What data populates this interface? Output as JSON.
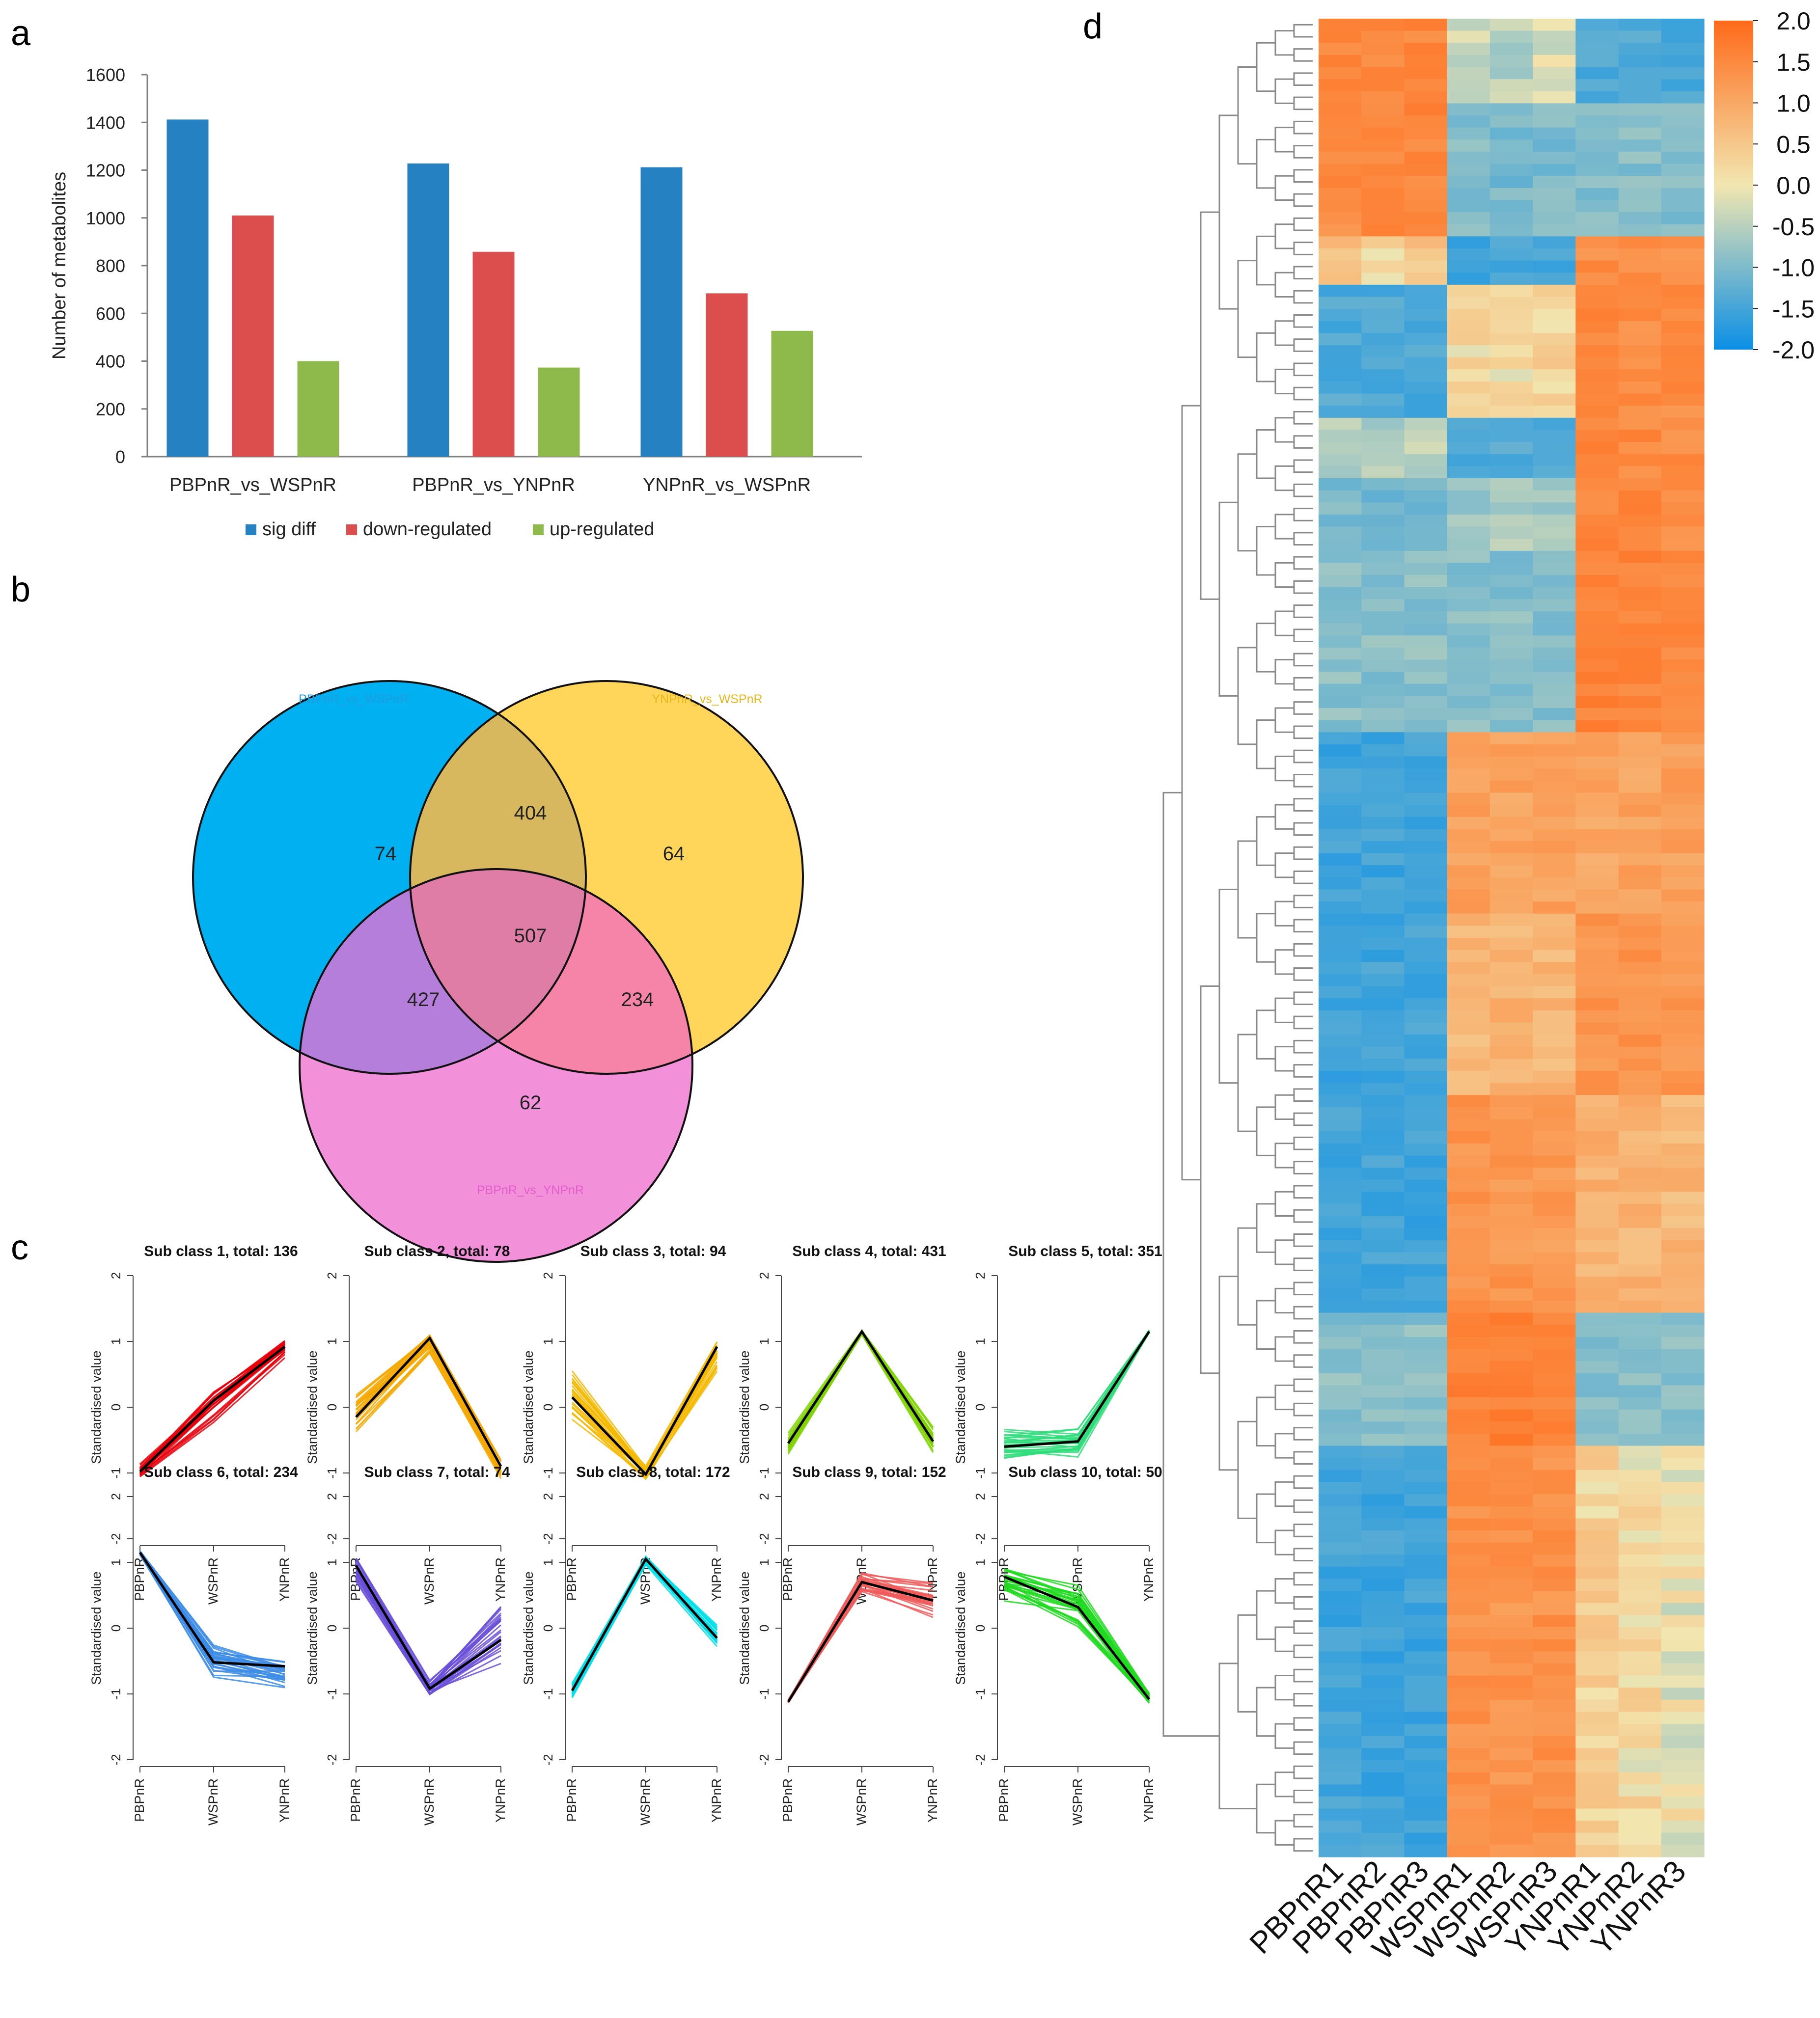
{
  "panel_labels": {
    "a": "a",
    "b": "b",
    "c": "c",
    "d": "d"
  },
  "colors": {
    "sig": "#2581C2",
    "down": "#DC4D4E",
    "up": "#8DBA4B",
    "venn1": "#00B0F0",
    "venn2": "#FFD55A",
    "venn3": "#F290DA",
    "venn1_label": "#1E9DE0",
    "venn2_label": "#E8B81C",
    "venn3_label": "#E25FCB",
    "heat_low": "#0A8FE6",
    "heat_mid": "#F2E6B0",
    "heat_high": "#FF6A1A"
  },
  "chart_data": [
    {
      "panel": "a",
      "type": "bar",
      "categories": [
        "PBPnR_vs_WSPnR",
        "PBPnR_vs_YNPnR",
        "YNPnR_vs_WSPnR"
      ],
      "series": [
        {
          "name": "sig diff",
          "values": [
            1412,
            1228,
            1212
          ]
        },
        {
          "name": "down-regulated",
          "values": [
            1010,
            858,
            684
          ]
        },
        {
          "name": "up-regulated",
          "values": [
            400,
            373,
            527
          ]
        }
      ],
      "ylabel": "Number of metabolites",
      "ylim": [
        0,
        1600
      ],
      "yticks": [
        "0",
        "200",
        "400",
        "600",
        "800",
        "1000",
        "1200",
        "1400",
        "1600"
      ],
      "legend": "bottom"
    },
    {
      "panel": "b",
      "type": "venn",
      "sets": [
        "PBPnR_vs_WSPnR",
        "YNPnR_vs_WSPnR",
        "PBPnR_vs_YNPnR"
      ],
      "regions": {
        "only1": "74",
        "only2": "64",
        "only3": "62",
        "s12": "404",
        "s13": "427",
        "s23": "234",
        "s123": "507"
      }
    },
    {
      "panel": "c",
      "type": "line",
      "xlabel_values": [
        "PBPnR",
        "WSPnR",
        "YNPnR"
      ],
      "ylabel": "Standardised value",
      "ylim": [
        -2,
        2
      ],
      "yticks": [
        "-2",
        "-1",
        "0",
        "1",
        "2"
      ],
      "subclasses": [
        {
          "title": "Sub class 1, total: 136",
          "color": "#E8000B",
          "mean": [
            -0.98,
            0.1,
            0.92
          ],
          "spread": [
            [
              -1.1,
              -0.85
            ],
            [
              -0.25,
              0.38
            ],
            [
              0.72,
              1.08
            ]
          ]
        },
        {
          "title": "Sub class 2, total: 78",
          "color": "#F5A800",
          "mean": [
            -0.15,
            1.05,
            -0.9
          ],
          "spread": [
            [
              -0.4,
              0.28
            ],
            [
              0.82,
              1.15
            ],
            [
              -1.1,
              -0.78
            ]
          ]
        },
        {
          "title": "Sub class 3, total: 94",
          "color": "#F5B800",
          "mean": [
            0.15,
            -1.02,
            0.92
          ],
          "spread": [
            [
              -0.3,
              0.62
            ],
            [
              -1.1,
              -0.88
            ],
            [
              0.52,
              1.08
            ]
          ]
        },
        {
          "title": "Sub class 4, total: 431",
          "color": "#7FD300",
          "mean": [
            -0.55,
            1.15,
            -0.52
          ],
          "spread": [
            [
              -0.78,
              -0.32
            ],
            [
              1.1,
              1.18
            ],
            [
              -0.72,
              -0.3
            ]
          ]
        },
        {
          "title": "Sub class 5, total: 351",
          "color": "#2EDD7A",
          "mean": [
            -0.6,
            -0.52,
            1.15
          ],
          "spread": [
            [
              -0.85,
              -0.3
            ],
            [
              -0.82,
              -0.28
            ],
            [
              1.12,
              1.18
            ]
          ]
        },
        {
          "title": "Sub class 6, total: 234",
          "color": "#3C8CE6",
          "mean": [
            1.15,
            -0.52,
            -0.58
          ],
          "spread": [
            [
              1.1,
              1.18
            ],
            [
              -0.78,
              -0.18
            ],
            [
              -0.92,
              -0.45
            ]
          ]
        },
        {
          "title": "Sub class 7, total: 74",
          "color": "#6A4FD9",
          "mean": [
            0.95,
            -0.92,
            -0.18
          ],
          "spread": [
            [
              0.68,
              1.12
            ],
            [
              -1.1,
              -0.75
            ],
            [
              -0.6,
              0.42
            ]
          ]
        },
        {
          "title": "Sub class 8, total: 172",
          "color": "#00E0EA",
          "mean": [
            -0.95,
            1.05,
            -0.15
          ],
          "spread": [
            [
              -1.08,
              -0.82
            ],
            [
              0.95,
              1.12
            ],
            [
              -0.35,
              0.1
            ]
          ]
        },
        {
          "title": "Sub class 9, total: 152",
          "color": "#F05B5B",
          "mean": [
            -1.12,
            0.7,
            0.42
          ],
          "spread": [
            [
              -1.15,
              -1.08
            ],
            [
              0.48,
              0.9
            ],
            [
              0.15,
              0.72
            ]
          ]
        },
        {
          "title": "Sub class 10, total: 50",
          "color": "#1EDB1E",
          "mean": [
            0.78,
            0.32,
            -1.08
          ],
          "spread": [
            [
              0.38,
              1.05
            ],
            [
              -0.05,
              0.72
            ],
            [
              -1.15,
              -0.95
            ]
          ]
        }
      ]
    },
    {
      "panel": "d",
      "type": "heatmap",
      "columns": [
        "PBPnR1",
        "PBPnR2",
        "PBPnR3",
        "WSPnR1",
        "WSPnR2",
        "WSPnR3",
        "YNPnR1",
        "YNPnR2",
        "YNPnR3"
      ],
      "colorbar": {
        "range": [
          -2.0,
          2.0
        ],
        "ticks": [
          "2.0",
          "1.5",
          "1.0",
          "0.5",
          "0.0",
          "-0.5",
          "-1.0",
          "-1.5",
          "-2.0"
        ]
      },
      "row_blocks": [
        {
          "rows": 7,
          "values": [
            1.35,
            1.4,
            1.38,
            -0.2,
            -0.35,
            -0.15,
            -1.25,
            -1.25,
            -1.25
          ]
        },
        {
          "rows": 11,
          "values": [
            1.3,
            1.35,
            1.4,
            -0.75,
            -0.85,
            -0.8,
            -0.7,
            -0.75,
            -0.8
          ]
        },
        {
          "rows": 4,
          "values": [
            0.35,
            0.2,
            0.3,
            -1.35,
            -1.35,
            -1.35,
            1.25,
            1.2,
            1.15
          ]
        },
        {
          "rows": 11,
          "values": [
            -1.25,
            -1.25,
            -1.25,
            0.1,
            0.05,
            0.15,
            1.4,
            1.3,
            1.3
          ]
        },
        {
          "rows": 5,
          "values": [
            -0.35,
            -0.45,
            -0.3,
            -1.2,
            -1.2,
            -1.2,
            1.4,
            1.35,
            1.3
          ]
        },
        {
          "rows": 6,
          "values": [
            -0.85,
            -0.95,
            -0.9,
            -0.55,
            -0.45,
            -0.5,
            1.4,
            1.35,
            1.3
          ]
        },
        {
          "rows": 15,
          "values": [
            -0.7,
            -0.7,
            -0.7,
            -0.7,
            -0.7,
            -0.7,
            1.45,
            1.45,
            1.4
          ]
        },
        {
          "rows": 15,
          "values": [
            -1.4,
            -1.4,
            -1.4,
            0.95,
            0.9,
            0.9,
            0.85,
            0.9,
            0.95
          ]
        },
        {
          "rows": 15,
          "values": [
            -1.4,
            -1.4,
            -1.4,
            0.55,
            0.6,
            0.55,
            1.15,
            1.15,
            1.1
          ]
        },
        {
          "rows": 18,
          "values": [
            -1.4,
            -1.4,
            -1.4,
            1.15,
            1.1,
            1.05,
            0.65,
            0.6,
            0.55
          ]
        },
        {
          "rows": 11,
          "values": [
            -0.7,
            -0.7,
            -0.7,
            1.5,
            1.55,
            1.5,
            -0.7,
            -0.7,
            -0.7
          ]
        },
        {
          "rows": 34,
          "values": [
            -1.4,
            -1.4,
            -1.4,
            1.2,
            1.15,
            1.2,
            0.2,
            0.1,
            -0.05
          ]
        }
      ]
    }
  ]
}
